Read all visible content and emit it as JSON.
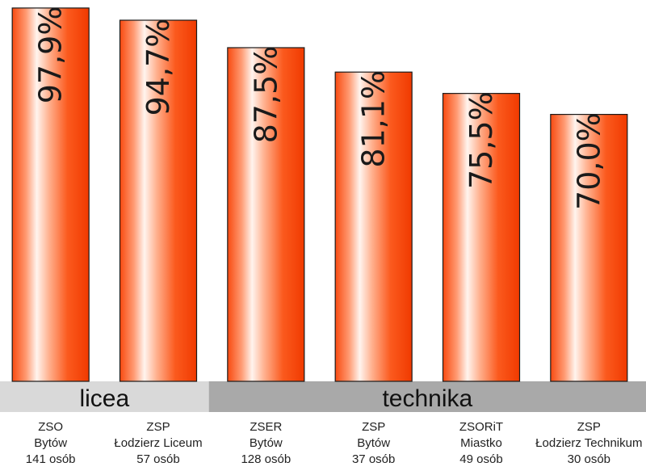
{
  "chart_data": {
    "type": "bar",
    "ylim": [
      0,
      100
    ],
    "grid": false,
    "groups": [
      {
        "label": "licea",
        "start": 0,
        "end": 1
      },
      {
        "label": "technika",
        "start": 2,
        "end": 5
      }
    ],
    "categories": [
      [
        "ZSO",
        "Bytów",
        "141 osób"
      ],
      [
        "ZSP",
        "Łodzierz Liceum",
        "57 osób"
      ],
      [
        "ZSER",
        "Bytów",
        "128 osób"
      ],
      [
        "ZSP",
        "Bytów",
        "37 osób"
      ],
      [
        "ZSORiT",
        "Miastko",
        "49 osób"
      ],
      [
        "ZSP",
        "Łodzierz Technikum",
        "30 osób"
      ]
    ],
    "values": [
      97.9,
      94.7,
      87.5,
      81.1,
      75.5,
      70.0
    ],
    "data_labels": [
      "97,9%",
      "94,7%",
      "87,5%",
      "81,1%",
      "75,5%",
      "70,0%"
    ]
  }
}
